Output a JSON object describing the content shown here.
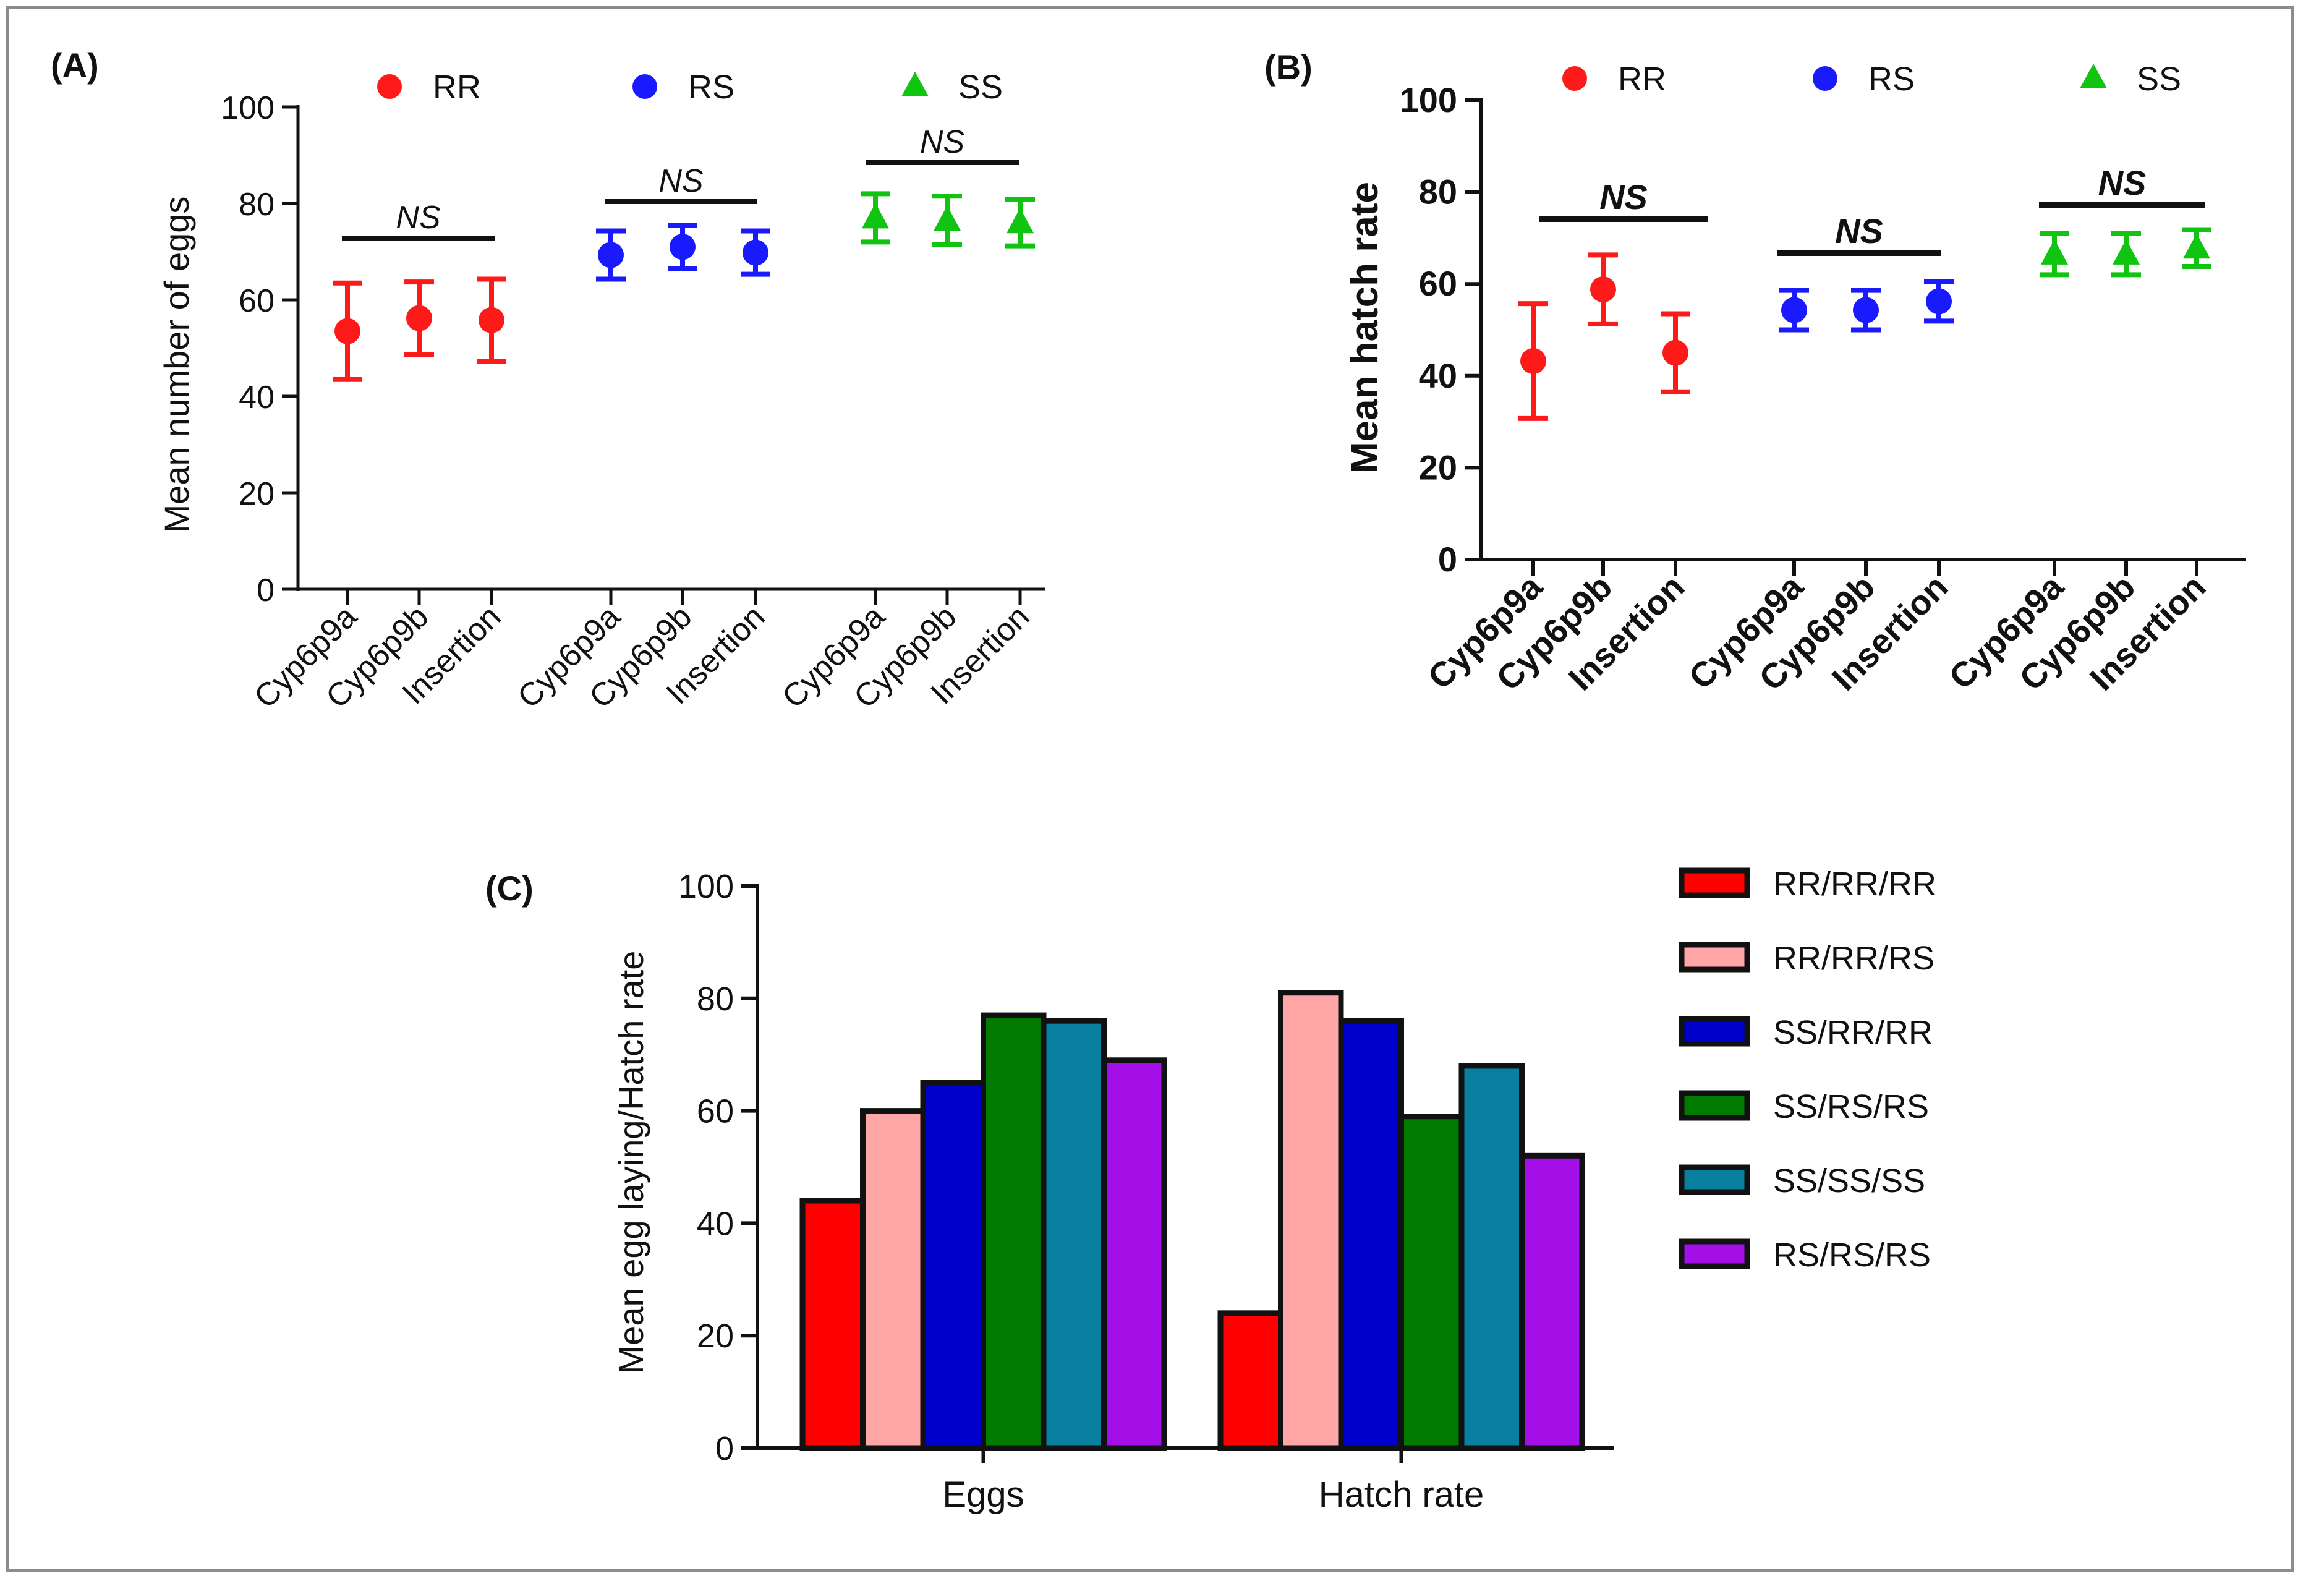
{
  "figure": {
    "colors": {
      "RR": "#ff1a1a",
      "RS": "#1a1aff",
      "SS": "#11c411"
    }
  },
  "chart_data": [
    {
      "type": "scatter",
      "panel_label": "(A)",
      "title": "",
      "xlabel": "",
      "ylabel": "Mean number of eggs",
      "ylim": [
        0,
        100
      ],
      "yticks": [
        "0",
        "20",
        "40",
        "60",
        "80",
        "100"
      ],
      "categories": [
        "Cyp6p9a",
        "Cyp6p9b",
        "Insertion",
        "Cyp6p9a",
        "Cyp6p9b",
        "Insertion",
        "Cyp6p9a",
        "Cyp6p9b",
        "Insertion"
      ],
      "legend": [
        "RR",
        "RS",
        "SS"
      ],
      "significance": [
        "NS",
        "NS",
        "NS"
      ],
      "series": [
        {
          "name": "RR",
          "marker": "circle",
          "values": [
            53.5,
            56.2,
            55.8
          ],
          "errors": [
            10.0,
            7.5,
            8.5
          ]
        },
        {
          "name": "RS",
          "marker": "circle",
          "values": [
            69.3,
            71.0,
            69.8
          ],
          "errors": [
            5.0,
            4.5,
            4.5
          ]
        },
        {
          "name": "SS",
          "marker": "triangle",
          "values": [
            77.0,
            76.5,
            76.0
          ],
          "errors": [
            5.0,
            5.0,
            4.8
          ]
        }
      ]
    },
    {
      "type": "scatter",
      "panel_label": "(B)",
      "title": "",
      "xlabel": "",
      "ylabel": "Mean hatch rate",
      "ylim": [
        0,
        100
      ],
      "yticks": [
        "0",
        "20",
        "40",
        "60",
        "80",
        "100"
      ],
      "categories": [
        "Cyp6p9a",
        "Cyp6p9b",
        "Insertion",
        "Cyp6p9a",
        "Cyp6p9b",
        "Insertion",
        "Cyp6p9a",
        "Cyp6p9b",
        "Insertion"
      ],
      "legend": [
        "RR",
        "RS",
        "SS"
      ],
      "significance": [
        "NS",
        "NS",
        "NS"
      ],
      "series": [
        {
          "name": "RR",
          "marker": "circle",
          "values": [
            43.2,
            58.8,
            45.0
          ],
          "errors": [
            12.5,
            7.5,
            8.5
          ]
        },
        {
          "name": "RS",
          "marker": "circle",
          "values": [
            54.3,
            54.3,
            56.2
          ],
          "errors": [
            4.3,
            4.3,
            4.3
          ]
        },
        {
          "name": "SS",
          "marker": "triangle",
          "values": [
            66.5,
            66.5,
            67.8
          ],
          "errors": [
            4.5,
            4.5,
            4.0
          ]
        }
      ]
    },
    {
      "type": "bar",
      "panel_label": "(C)",
      "title": "",
      "xlabel": "",
      "ylabel": "Mean egg laying/Hatch rate",
      "ylim": [
        0,
        100
      ],
      "yticks": [
        "0",
        "20",
        "40",
        "60",
        "80",
        "100"
      ],
      "categories": [
        "Eggs",
        "Hatch rate"
      ],
      "series": [
        {
          "name": "RR/RR/RR",
          "color": "#ff0000",
          "values": [
            44,
            24
          ]
        },
        {
          "name": "RR/RR/RS",
          "color": "#ffa6a6",
          "values": [
            60,
            81
          ]
        },
        {
          "name": "SS/RR/RR",
          "color": "#0000cc",
          "values": [
            65,
            76
          ]
        },
        {
          "name": "SS/RS/RS",
          "color": "#007a00",
          "values": [
            77,
            59
          ]
        },
        {
          "name": "SS/SS/SS",
          "color": "#087f9e",
          "values": [
            76,
            68
          ]
        },
        {
          "name": "RS/RS/RS",
          "color": "#a30fe6",
          "values": [
            69,
            52
          ]
        }
      ]
    }
  ]
}
